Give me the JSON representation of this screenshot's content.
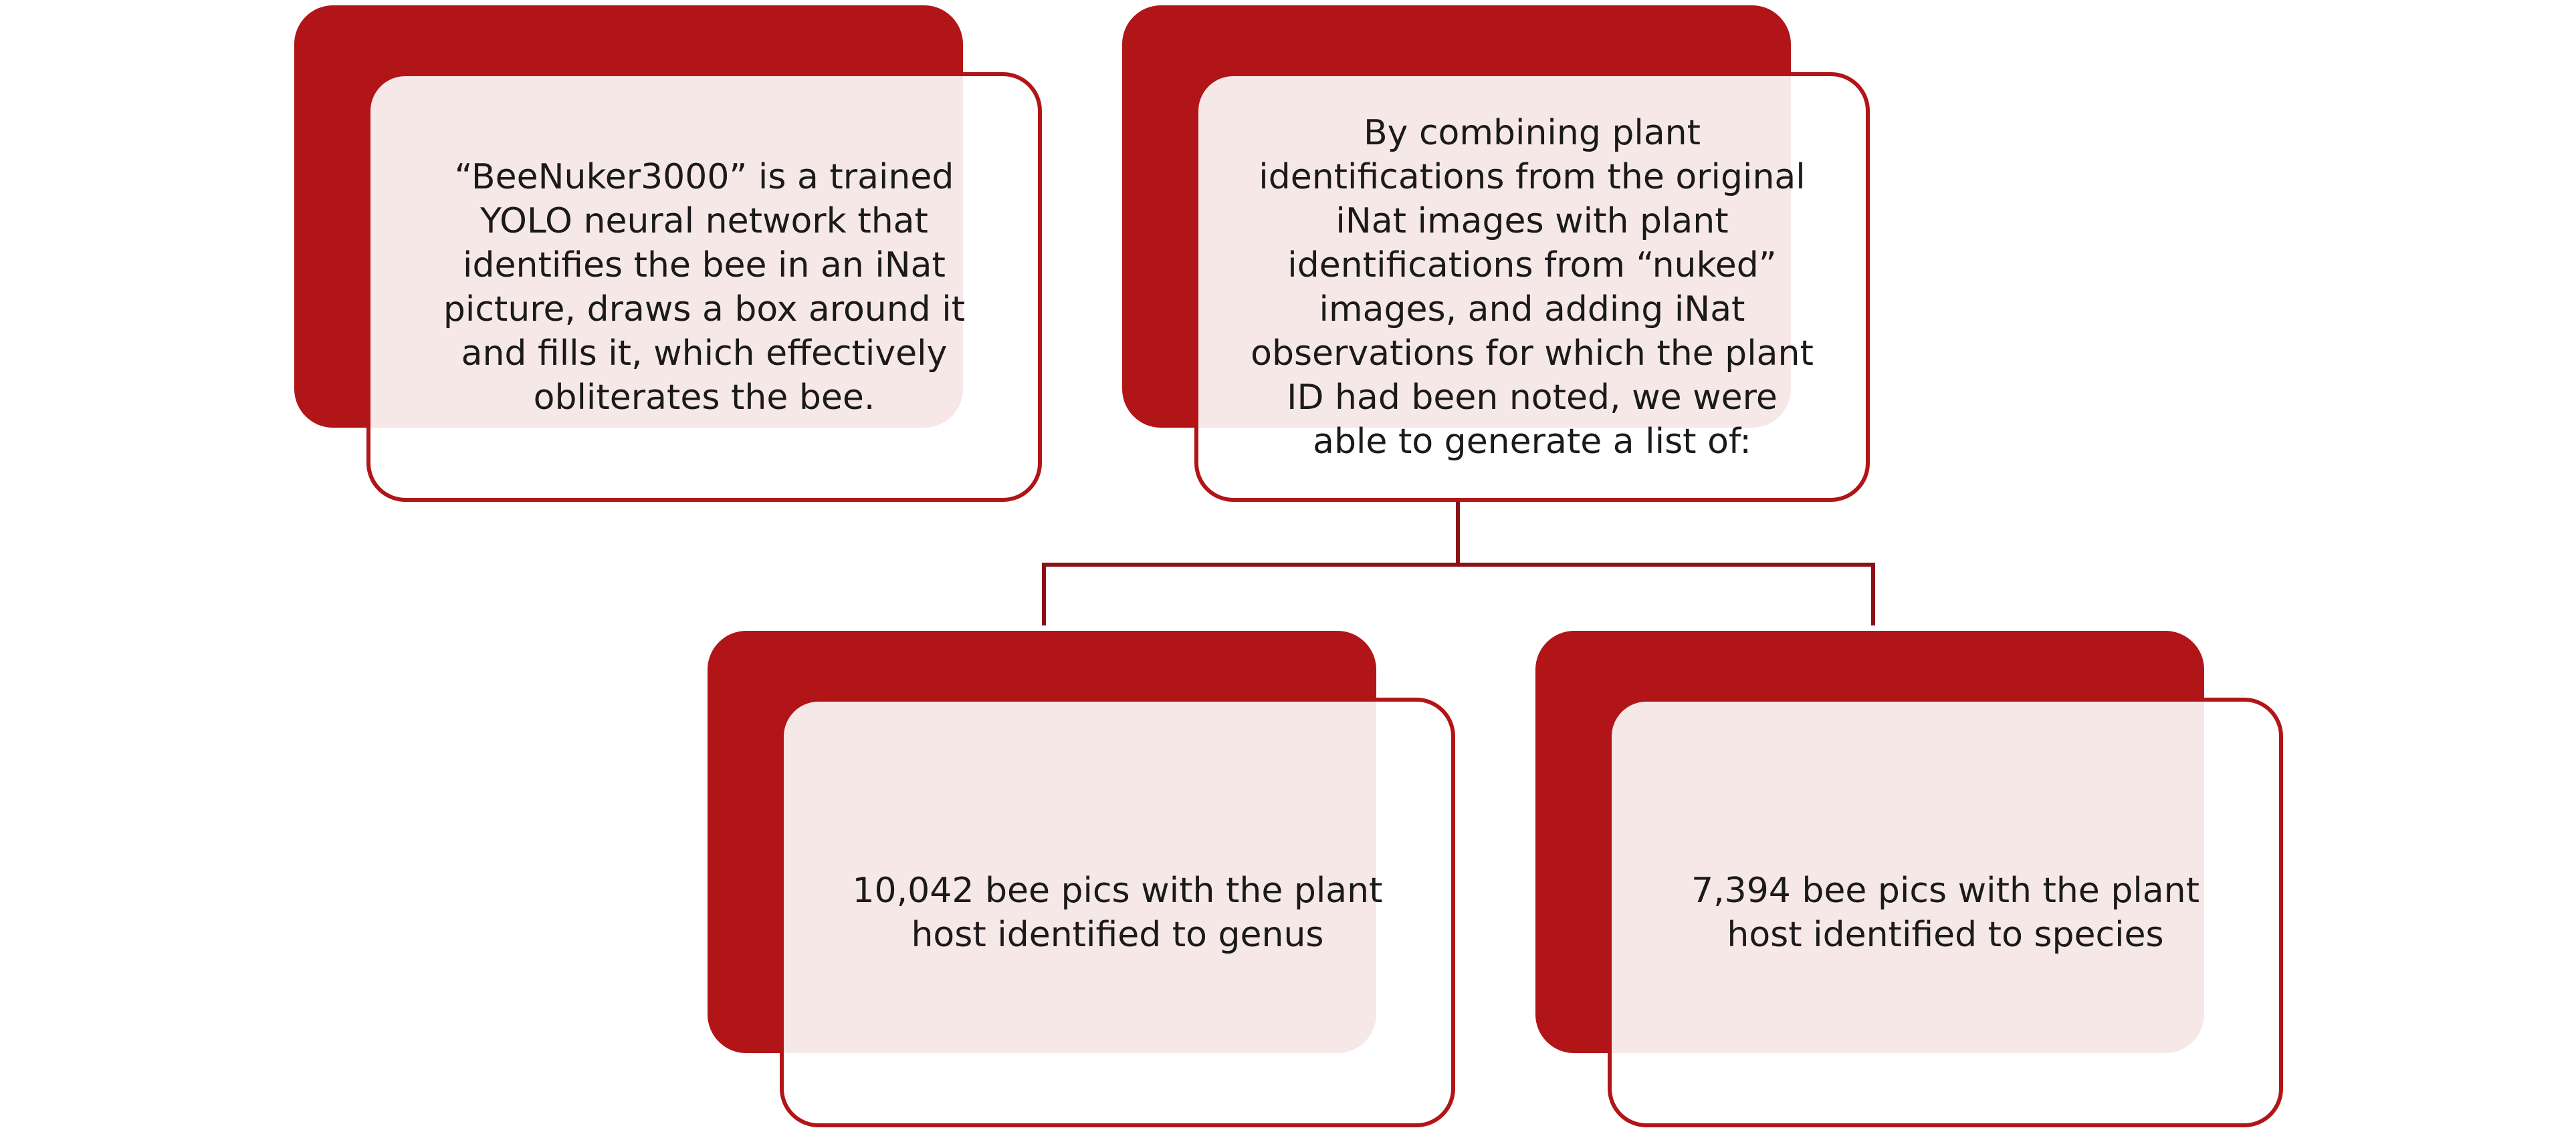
{
  "diagram": {
    "boxes": {
      "beenuker": {
        "text": "“BeeNuker3000” is a trained\nYOLO neural network that\nidentifies the bee in an iNat\npicture, draws a box around it\nand fills it, which effectively\nobliterates the bee."
      },
      "combining": {
        "text": "By combining plant\nidentifications from the original\niNat images with plant\nidentifications from “nuked”\nimages, and adding iNat\nobservations for which the plant\nID had been noted, we were\nable to generate a list of:"
      },
      "genus": {
        "text": "10,042 bee pics with the plant\nhost identified to genus"
      },
      "species": {
        "text": "7,394 bee pics with the plant\nhost identified to species"
      }
    },
    "colors": {
      "accent": "#b11518",
      "connector": "#8a1115",
      "card_fill": "#f6e7e7",
      "text": "#1a1a1a"
    }
  }
}
